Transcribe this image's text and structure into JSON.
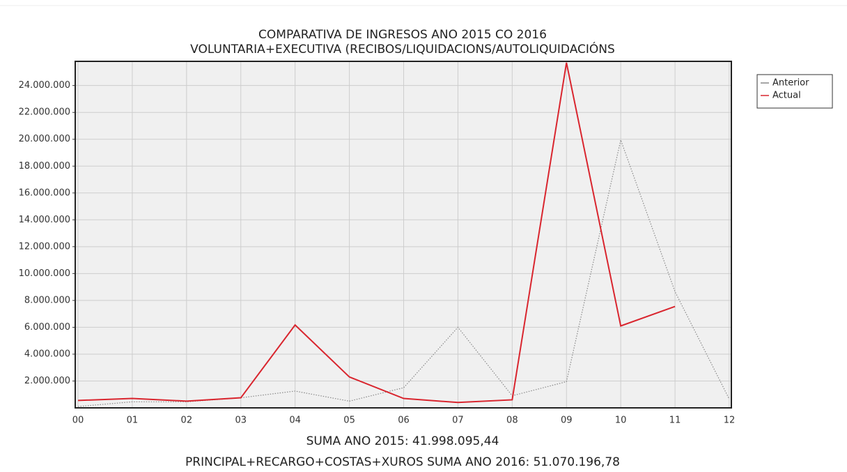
{
  "chart_data": {
    "type": "line",
    "title": "COMPARATIVA DE INGRESOS ANO 2015 CO 2016",
    "subtitle": "VOLUNTARIA+EXECUTIVA (RECIBOS/LIQUIDACIONS/AUTOLIQUIDACIÓNS",
    "categories": [
      "00",
      "01",
      "02",
      "03",
      "04",
      "05",
      "06",
      "07",
      "08",
      "09",
      "10",
      "11",
      "12"
    ],
    "series": [
      {
        "name": "Anterior",
        "color": "#888888",
        "line_style": "dotted",
        "values": [
          100000,
          450000,
          450000,
          750000,
          1250000,
          500000,
          1500000,
          6000000,
          900000,
          1950000,
          19950000,
          8650000,
          650000
        ]
      },
      {
        "name": "Actual",
        "color": "#d9252e",
        "line_style": "solid",
        "values": [
          550000,
          700000,
          500000,
          750000,
          6170000,
          2300000,
          700000,
          400000,
          600000,
          25700000,
          6100000,
          7550000,
          null
        ]
      }
    ],
    "ylim": [
      0,
      25800000
    ],
    "yticks": [
      {
        "value": 2000000,
        "label": "2.000.000"
      },
      {
        "value": 4000000,
        "label": "4.000.000"
      },
      {
        "value": 6000000,
        "label": "6.000.000"
      },
      {
        "value": 8000000,
        "label": "8.000.000"
      },
      {
        "value": 10000000,
        "label": "10.000.000"
      },
      {
        "value": 12000000,
        "label": "12.000.000"
      },
      {
        "value": 14000000,
        "label": "14.000.000"
      },
      {
        "value": 16000000,
        "label": "16.000.000"
      },
      {
        "value": 18000000,
        "label": "18.000.000"
      },
      {
        "value": 20000000,
        "label": "20.000.000"
      },
      {
        "value": 22000000,
        "label": "22.000.000"
      },
      {
        "value": 24000000,
        "label": "24.000.000"
      }
    ],
    "grid": true,
    "legend": "top-right",
    "footer": [
      "SUMA ANO 2015: 41.998.095,44",
      "PRINCIPAL+RECARGO+COSTAS+XUROS SUMA ANO 2016: 51.070.196,78"
    ]
  }
}
